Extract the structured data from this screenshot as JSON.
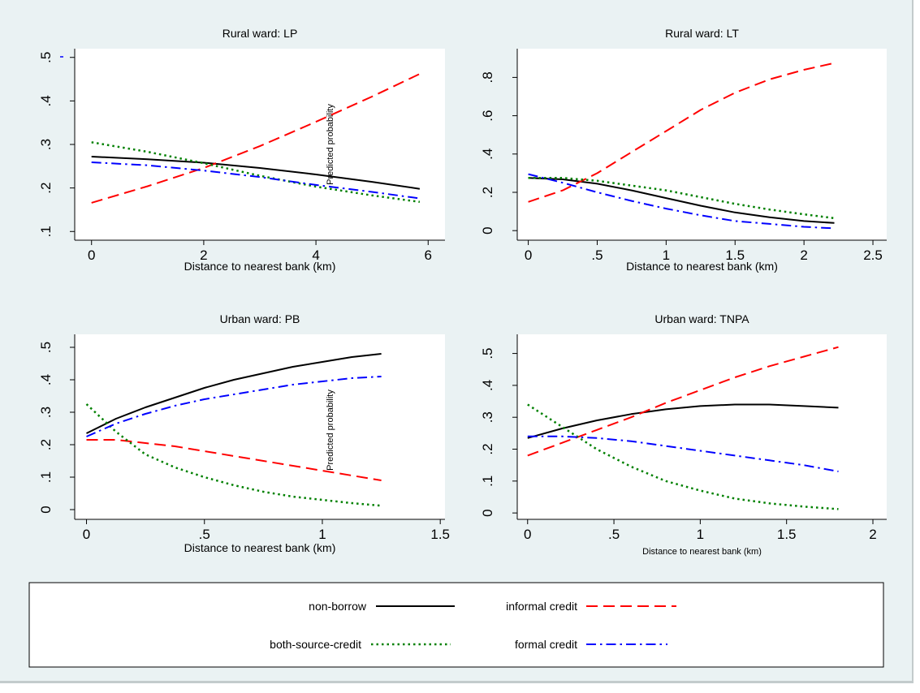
{
  "colors": {
    "background": "#eaf2f3",
    "non_borrow": "#000000",
    "informal_credit": "#ff0000",
    "both_source_credit": "#008000",
    "formal_credit": "#0000ff"
  },
  "legend": {
    "items": [
      {
        "key": "non_borrow",
        "label": "non-borrow",
        "style": "solid",
        "color": "#000000"
      },
      {
        "key": "informal_credit",
        "label": "informal credit",
        "style": "dash",
        "color": "#ff0000"
      },
      {
        "key": "both_source_credit",
        "label": "both-source-credit",
        "style": "dot",
        "color": "#008000"
      },
      {
        "key": "formal_credit",
        "label": "formal credit",
        "style": "dashdot",
        "color": "#0000ff"
      }
    ]
  },
  "chart_data": [
    {
      "type": "line",
      "title": "Rural ward: LP",
      "xlabel": "Distance to nearest bank (km)",
      "ylabel": "Predicted probability",
      "xlim": [
        -0.3,
        6.3
      ],
      "ylim": [
        0.08,
        0.52
      ],
      "xticks": [
        {
          "v": 0,
          "label": "0"
        },
        {
          "v": 2,
          "label": "2"
        },
        {
          "v": 4,
          "label": "4"
        },
        {
          "v": 6,
          "label": "6"
        }
      ],
      "yticks": [
        {
          "v": 0.1,
          "label": ".1"
        },
        {
          "v": 0.2,
          "label": ".2"
        },
        {
          "v": 0.3,
          "label": ".3"
        },
        {
          "v": 0.4,
          "label": ".4"
        },
        {
          "v": 0.5,
          "label": ".5"
        }
      ],
      "x": [
        0,
        1,
        2,
        3,
        4,
        5,
        5.85
      ],
      "series": [
        {
          "key": "non_borrow",
          "values": [
            0.272,
            0.266,
            0.258,
            0.246,
            0.231,
            0.214,
            0.198
          ]
        },
        {
          "key": "informal_credit",
          "values": [
            0.166,
            0.204,
            0.246,
            0.296,
            0.352,
            0.41,
            0.462
          ]
        },
        {
          "key": "both_source_credit",
          "values": [
            0.305,
            0.283,
            0.257,
            0.228,
            0.203,
            0.183,
            0.168
          ]
        },
        {
          "key": "formal_credit",
          "values": [
            0.259,
            0.252,
            0.24,
            0.225,
            0.207,
            0.191,
            0.176
          ]
        }
      ]
    },
    {
      "type": "line",
      "title": "Rural ward: LT",
      "xlabel": "Distance to nearest bank (km)",
      "ylabel": "",
      "xlim": [
        -0.08,
        2.6
      ],
      "ylim": [
        -0.05,
        0.95
      ],
      "xticks": [
        {
          "v": 0,
          "label": "0"
        },
        {
          "v": 0.5,
          "label": ".5"
        },
        {
          "v": 1,
          "label": "1"
        },
        {
          "v": 1.5,
          "label": "1.5"
        },
        {
          "v": 2,
          "label": "2"
        },
        {
          "v": 2.5,
          "label": "2.5"
        }
      ],
      "yticks": [
        {
          "v": 0,
          "label": "0"
        },
        {
          "v": 0.2,
          "label": ".2"
        },
        {
          "v": 0.4,
          "label": ".4"
        },
        {
          "v": 0.6,
          "label": ".6"
        },
        {
          "v": 0.8,
          "label": ".8"
        }
      ],
      "x": [
        0,
        0.25,
        0.5,
        0.75,
        1,
        1.25,
        1.5,
        1.75,
        2,
        2.22
      ],
      "series": [
        {
          "key": "non_borrow",
          "values": [
            0.275,
            0.268,
            0.245,
            0.21,
            0.17,
            0.13,
            0.095,
            0.07,
            0.05,
            0.04
          ]
        },
        {
          "key": "informal_credit",
          "values": [
            0.15,
            0.21,
            0.3,
            0.41,
            0.52,
            0.63,
            0.72,
            0.79,
            0.84,
            0.875
          ]
        },
        {
          "key": "both_source_credit",
          "values": [
            0.275,
            0.275,
            0.26,
            0.235,
            0.21,
            0.175,
            0.14,
            0.11,
            0.085,
            0.065
          ]
        },
        {
          "key": "formal_credit",
          "values": [
            0.295,
            0.25,
            0.2,
            0.155,
            0.115,
            0.08,
            0.05,
            0.035,
            0.02,
            0.012
          ]
        }
      ]
    },
    {
      "type": "line",
      "title": "Urban ward: PB",
      "xlabel": "Distance to nearest bank (km)",
      "ylabel": "Predicted probability",
      "xlim": [
        -0.05,
        1.52
      ],
      "ylim": [
        -0.03,
        0.54
      ],
      "xticks": [
        {
          "v": 0,
          "label": "0"
        },
        {
          "v": 0.5,
          "label": ".5"
        },
        {
          "v": 1,
          "label": "1"
        },
        {
          "v": 1.5,
          "label": "1.5"
        }
      ],
      "yticks": [
        {
          "v": 0,
          "label": "0"
        },
        {
          "v": 0.1,
          "label": ".1"
        },
        {
          "v": 0.2,
          "label": ".2"
        },
        {
          "v": 0.3,
          "label": ".3"
        },
        {
          "v": 0.4,
          "label": ".4"
        },
        {
          "v": 0.5,
          "label": ".5"
        }
      ],
      "x": [
        0,
        0.125,
        0.25,
        0.375,
        0.5,
        0.625,
        0.75,
        0.875,
        1,
        1.125,
        1.25
      ],
      "series": [
        {
          "key": "non_borrow",
          "values": [
            0.235,
            0.28,
            0.315,
            0.345,
            0.375,
            0.4,
            0.42,
            0.44,
            0.455,
            0.47,
            0.48
          ]
        },
        {
          "key": "informal_credit",
          "values": [
            0.215,
            0.215,
            0.205,
            0.195,
            0.18,
            0.165,
            0.15,
            0.135,
            0.12,
            0.105,
            0.09
          ]
        },
        {
          "key": "both_source_credit",
          "values": [
            0.325,
            0.24,
            0.17,
            0.13,
            0.1,
            0.075,
            0.055,
            0.04,
            0.03,
            0.02,
            0.012
          ]
        },
        {
          "key": "formal_credit",
          "values": [
            0.225,
            0.265,
            0.295,
            0.32,
            0.34,
            0.355,
            0.37,
            0.385,
            0.395,
            0.405,
            0.41
          ]
        }
      ]
    },
    {
      "type": "line",
      "title": "Urban ward: TNPA",
      "xlabel": "Distance to nearest bank (km)",
      "ylabel": "",
      "xlim": [
        -0.06,
        2.08
      ],
      "ylim": [
        -0.02,
        0.56
      ],
      "xticks": [
        {
          "v": 0,
          "label": "0"
        },
        {
          "v": 0.5,
          "label": ".5"
        },
        {
          "v": 1,
          "label": "1"
        },
        {
          "v": 1.5,
          "label": "1.5"
        },
        {
          "v": 2,
          "label": "2"
        }
      ],
      "yticks": [
        {
          "v": 0,
          "label": "0"
        },
        {
          "v": 0.1,
          "label": ".1"
        },
        {
          "v": 0.2,
          "label": ".2"
        },
        {
          "v": 0.3,
          "label": ".3"
        },
        {
          "v": 0.4,
          "label": ".4"
        },
        {
          "v": 0.5,
          "label": ".5"
        }
      ],
      "x": [
        0,
        0.2,
        0.4,
        0.6,
        0.8,
        1,
        1.2,
        1.4,
        1.6,
        1.8
      ],
      "series": [
        {
          "key": "non_borrow",
          "values": [
            0.235,
            0.265,
            0.29,
            0.31,
            0.325,
            0.335,
            0.34,
            0.34,
            0.335,
            0.33
          ]
        },
        {
          "key": "informal_credit",
          "values": [
            0.18,
            0.22,
            0.26,
            0.3,
            0.345,
            0.385,
            0.425,
            0.46,
            0.49,
            0.52
          ]
        },
        {
          "key": "both_source_credit",
          "values": [
            0.34,
            0.27,
            0.2,
            0.145,
            0.1,
            0.07,
            0.045,
            0.03,
            0.02,
            0.012
          ]
        },
        {
          "key": "formal_credit",
          "values": [
            0.24,
            0.24,
            0.235,
            0.225,
            0.21,
            0.195,
            0.18,
            0.165,
            0.15,
            0.13
          ]
        }
      ]
    }
  ]
}
